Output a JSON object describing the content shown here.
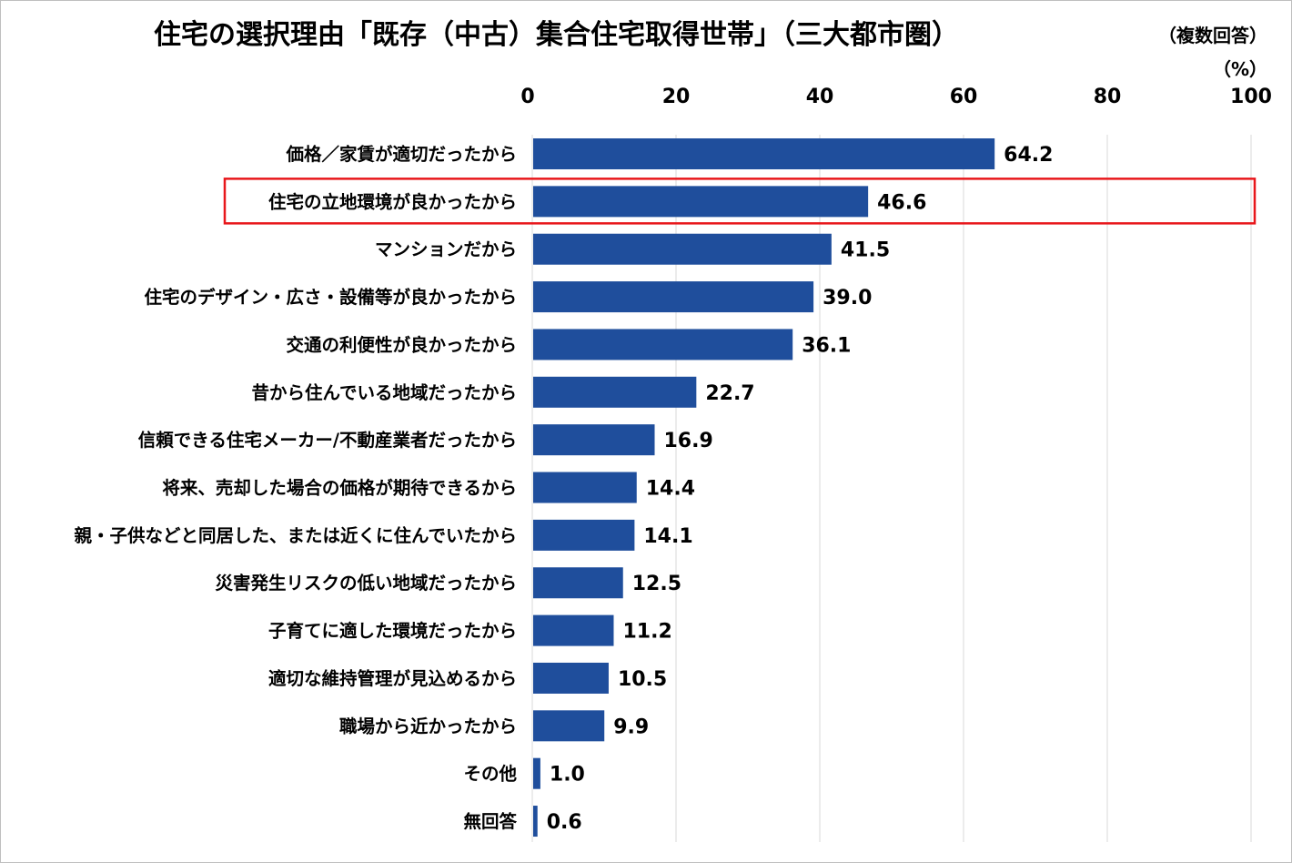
{
  "chart_data": {
    "type": "bar",
    "orientation": "horizontal",
    "title": "住宅の選択理由「既存（中古）集合住宅取得世帯」（三大都市圏）",
    "note": "（複数回答）",
    "unit": "（%）",
    "xlim": [
      0,
      100
    ],
    "xticks": [
      "0",
      "20",
      "40",
      "60",
      "80",
      "100"
    ],
    "grid": "vertical",
    "bar_color": "#1f4e9c",
    "highlight_color": "#e8171b",
    "highlight_index": 1,
    "categories": [
      "価格／家賃が適切だったから",
      "住宅の立地環境が良かったから",
      "マンションだから",
      "住宅のデザイン・広さ・設備等が良かったから",
      "交通の利便性が良かったから",
      "昔から住んでいる地域だったから",
      "信頼できる住宅メーカー/不動産業者だったから",
      "将来、売却した場合の価格が期待できるから",
      "親・子供などと同居した、または近くに住んでいたから",
      "災害発生リスクの低い地域だったから",
      "子育てに適した環境だったから",
      "適切な維持管理が見込めるから",
      "職場から近かったから",
      "その他",
      "無回答"
    ],
    "values": [
      64.2,
      46.6,
      41.5,
      39.0,
      36.1,
      22.7,
      16.9,
      14.4,
      14.1,
      12.5,
      11.2,
      10.5,
      9.9,
      1.0,
      0.6
    ],
    "value_labels": [
      "64.2",
      "46.6",
      "41.5",
      "39.0",
      "36.1",
      "22.7",
      "16.9",
      "14.4",
      "14.1",
      "12.5",
      "11.2",
      "10.5",
      "9.9",
      "1.0",
      "0.6"
    ]
  }
}
